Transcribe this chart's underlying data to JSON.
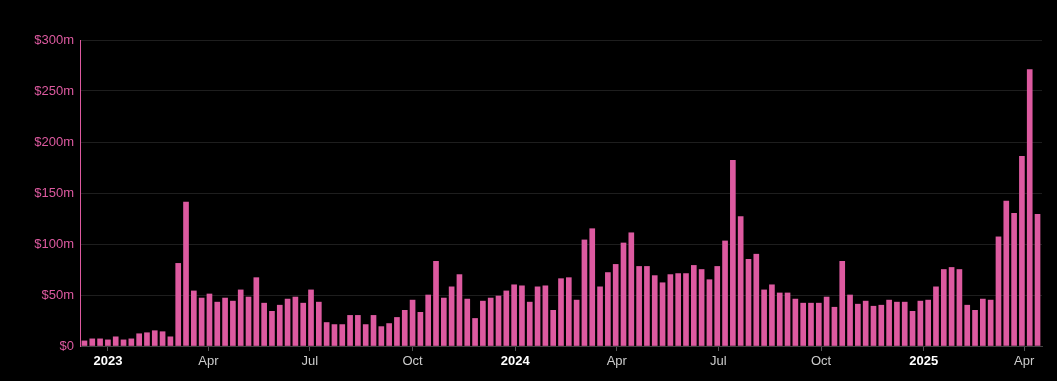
{
  "chart_data": {
    "type": "bar",
    "color": "#dd5aa0",
    "grid": "y",
    "x": [
      "2022-12-11",
      "2022-12-18",
      "2022-12-25",
      "2023-01-01",
      "2023-01-08",
      "2023-01-15",
      "2023-01-22",
      "2023-01-29",
      "2023-02-05",
      "2023-02-12",
      "2023-02-19",
      "2023-02-26",
      "2023-03-05",
      "2023-03-12",
      "2023-03-19",
      "2023-03-26",
      "2023-04-02",
      "2023-04-09",
      "2023-04-16",
      "2023-04-23",
      "2023-04-30",
      "2023-05-07",
      "2023-05-14",
      "2023-05-21",
      "2023-05-28",
      "2023-06-04",
      "2023-06-11",
      "2023-06-18",
      "2023-06-25",
      "2023-07-02",
      "2023-07-09",
      "2023-07-16",
      "2023-07-23",
      "2023-07-30",
      "2023-08-06",
      "2023-08-13",
      "2023-08-20",
      "2023-08-27",
      "2023-09-03",
      "2023-09-10",
      "2023-09-17",
      "2023-09-24",
      "2023-10-01",
      "2023-10-08",
      "2023-10-15",
      "2023-10-22",
      "2023-10-29",
      "2023-11-05",
      "2023-11-12",
      "2023-11-19",
      "2023-11-26",
      "2023-12-03",
      "2023-12-10",
      "2023-12-17",
      "2023-12-24",
      "2023-12-31",
      "2024-01-07",
      "2024-01-14",
      "2024-01-21",
      "2024-01-28",
      "2024-02-04",
      "2024-02-11",
      "2024-02-18",
      "2024-02-25",
      "2024-03-03",
      "2024-03-10",
      "2024-03-17",
      "2024-03-24",
      "2024-03-31",
      "2024-04-07",
      "2024-04-14",
      "2024-04-21",
      "2024-04-28",
      "2024-05-05",
      "2024-05-12",
      "2024-05-19",
      "2024-05-26",
      "2024-06-02",
      "2024-06-09",
      "2024-06-16",
      "2024-06-23",
      "2024-06-30",
      "2024-07-07",
      "2024-07-14",
      "2024-07-21",
      "2024-07-28",
      "2024-08-04",
      "2024-08-11",
      "2024-08-18",
      "2024-08-25",
      "2024-09-01",
      "2024-09-08",
      "2024-09-15",
      "2024-09-22",
      "2024-09-29",
      "2024-10-06",
      "2024-10-13",
      "2024-10-20",
      "2024-10-27",
      "2024-11-03",
      "2024-11-10",
      "2024-11-17",
      "2024-11-24",
      "2024-12-01",
      "2024-12-08",
      "2024-12-15",
      "2024-12-22",
      "2024-12-29",
      "2025-01-05",
      "2025-01-12",
      "2025-01-19",
      "2025-01-26",
      "2025-02-02",
      "2025-02-09",
      "2025-02-16",
      "2025-02-23",
      "2025-03-02",
      "2025-03-09",
      "2025-03-16",
      "2025-03-23",
      "2025-03-30",
      "2025-04-06",
      "2025-04-13"
    ],
    "values": [
      5,
      7,
      7,
      6,
      9,
      6,
      7,
      12,
      13,
      15,
      14,
      9,
      81,
      141,
      54,
      47,
      51,
      43,
      47,
      44,
      55,
      48,
      67,
      42,
      34,
      40,
      46,
      48,
      42,
      55,
      43,
      23,
      21,
      21,
      30,
      30,
      21,
      30,
      19,
      22,
      28,
      35,
      45,
      33,
      50,
      83,
      47,
      58,
      70,
      46,
      27,
      44,
      47,
      49,
      54,
      60,
      59,
      43,
      58,
      59,
      35,
      66,
      67,
      45,
      104,
      115,
      58,
      72,
      80,
      101,
      111,
      78,
      78,
      69,
      62,
      70,
      71,
      71,
      79,
      75,
      65,
      78,
      103,
      182,
      127,
      85,
      90,
      55,
      60,
      52,
      52,
      46,
      42,
      42,
      42,
      48,
      38,
      83,
      50,
      41,
      44,
      39,
      40,
      45,
      43,
      43,
      34,
      44,
      45,
      58,
      75,
      77,
      75,
      40,
      35,
      46,
      45,
      107,
      142,
      130,
      186,
      271,
      129
    ],
    "xlim": [
      "2022-12-07",
      "2025-04-17"
    ],
    "xticks": [
      {
        "value": "2023-01-01",
        "label": "2023"
      },
      {
        "value": "2023-04-01",
        "label": "Apr"
      },
      {
        "value": "2023-07-01",
        "label": "Jul"
      },
      {
        "value": "2023-10-01",
        "label": "Oct"
      },
      {
        "value": "2024-01-01",
        "label": "2024"
      },
      {
        "value": "2024-04-01",
        "label": "Apr"
      },
      {
        "value": "2024-07-01",
        "label": "Jul"
      },
      {
        "value": "2024-10-01",
        "label": "Oct"
      },
      {
        "value": "2025-01-01",
        "label": "2025"
      },
      {
        "value": "2025-04-01",
        "label": "Apr"
      }
    ],
    "ylim": [
      0,
      300
    ],
    "yticks": [
      {
        "value": 0,
        "label": "$0"
      },
      {
        "value": 50,
        "label": "$50m"
      },
      {
        "value": 100,
        "label": "$100m"
      },
      {
        "value": 150,
        "label": "$150m"
      },
      {
        "value": 200,
        "label": "$200m"
      },
      {
        "value": 250,
        "label": "$250m"
      },
      {
        "value": 300,
        "label": "$300m"
      }
    ]
  }
}
